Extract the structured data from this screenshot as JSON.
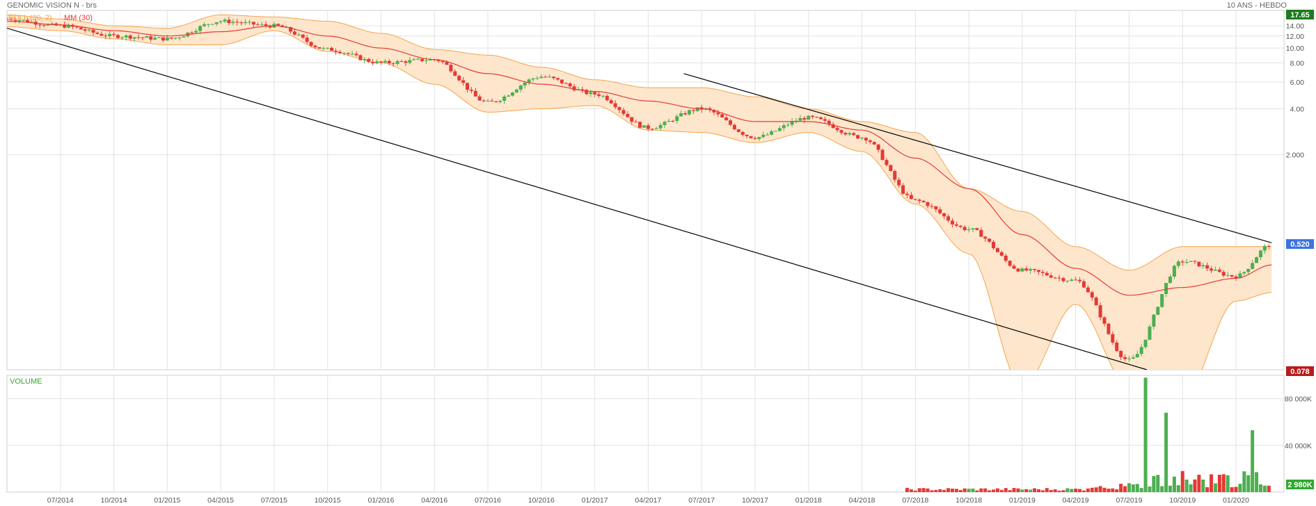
{
  "header": {
    "title": "GENOMIC VISION N - brs",
    "period": "10 ANS - HEBDO"
  },
  "legend": {
    "boll": "BOLL (20, 2)",
    "ma": "MM (30)",
    "volume": "VOLUME"
  },
  "price_axis": {
    "ticks": [
      "14.00",
      "12.00",
      "10.00",
      "8.00",
      "6.00",
      "4.00",
      "2.000"
    ],
    "badge_high": "17.65",
    "badge_last": "0.520",
    "badge_low": "0.078"
  },
  "volume_axis": {
    "ticks": [
      "80 000K",
      "40 000K"
    ],
    "badge_last": "2 980K"
  },
  "x_axis": {
    "labels": [
      "07/2014",
      "10/2014",
      "01/2015",
      "04/2015",
      "07/2015",
      "10/2015",
      "01/2016",
      "04/2016",
      "07/2016",
      "10/2016",
      "01/2017",
      "04/2017",
      "07/2017",
      "10/2017",
      "01/2018",
      "04/2018",
      "07/2018",
      "10/2018",
      "01/2019",
      "04/2019",
      "07/2019",
      "10/2019",
      "01/2020"
    ]
  },
  "colors": {
    "up": "#4caf50",
    "down": "#e53935",
    "ma": "#e53935",
    "band_fill": "#fde6cc",
    "band_line": "#f5a44a",
    "trend": "#000000",
    "grid": "#e2e2e2",
    "badge_high": "#1e7a1e",
    "badge_last": "#3b73e0",
    "badge_low": "#b71c1c",
    "badge_vol": "#2fa82f",
    "legend_boll": "#f5a44a",
    "legend_ma": "#e53935",
    "legend_volume": "#2fa82f"
  },
  "chart_data": {
    "type": "candlestick",
    "price_scale": "log",
    "ylim": [
      0.078,
      17.65
    ],
    "volume_ylim": [
      0,
      100000
    ],
    "volume_unit": "K",
    "checkpoints": [
      {
        "x": "2014-04",
        "price": 15.5,
        "ma": 15.0,
        "upper": 16.5,
        "lower": 13.8
      },
      {
        "x": "2014-07",
        "price": 14.0,
        "ma": 14.2,
        "upper": 15.5,
        "lower": 13.0
      },
      {
        "x": "2014-10",
        "price": 12.0,
        "ma": 13.0,
        "upper": 14.0,
        "lower": 11.5
      },
      {
        "x": "2015-01",
        "price": 11.5,
        "ma": 12.0,
        "upper": 13.5,
        "lower": 10.5
      },
      {
        "x": "2015-04",
        "price": 15.0,
        "ma": 12.8,
        "upper": 16.5,
        "lower": 10.5
      },
      {
        "x": "2015-07",
        "price": 14.0,
        "ma": 14.0,
        "upper": 16.0,
        "lower": 13.0
      },
      {
        "x": "2015-10",
        "price": 9.8,
        "ma": 12.0,
        "upper": 15.0,
        "lower": 9.5
      },
      {
        "x": "2016-01",
        "price": 8.0,
        "ma": 10.0,
        "upper": 12.5,
        "lower": 8.0
      },
      {
        "x": "2016-04",
        "price": 8.4,
        "ma": 8.4,
        "upper": 9.8,
        "lower": 5.8
      },
      {
        "x": "2016-07",
        "price": 4.4,
        "ma": 6.8,
        "upper": 9.0,
        "lower": 3.8
      },
      {
        "x": "2016-10",
        "price": 6.5,
        "ma": 5.8,
        "upper": 7.5,
        "lower": 4.0
      },
      {
        "x": "2017-01",
        "price": 5.0,
        "ma": 5.2,
        "upper": 6.2,
        "lower": 4.2
      },
      {
        "x": "2017-04",
        "price": 3.0,
        "ma": 4.5,
        "upper": 5.5,
        "lower": 2.9
      },
      {
        "x": "2017-07",
        "price": 4.0,
        "ma": 4.0,
        "upper": 5.5,
        "lower": 2.8
      },
      {
        "x": "2017-10",
        "price": 2.6,
        "ma": 3.3,
        "upper": 4.8,
        "lower": 2.4
      },
      {
        "x": "2018-01",
        "price": 3.5,
        "ma": 3.3,
        "upper": 4.0,
        "lower": 2.8
      },
      {
        "x": "2018-04",
        "price": 2.6,
        "ma": 2.9,
        "upper": 3.3,
        "lower": 2.1
      },
      {
        "x": "2018-07",
        "price": 1.0,
        "ma": 1.9,
        "upper": 2.8,
        "lower": 0.95
      },
      {
        "x": "2018-10",
        "price": 0.65,
        "ma": 1.2,
        "upper": 1.2,
        "lower": 0.45
      },
      {
        "x": "2019-01",
        "price": 0.35,
        "ma": 0.6,
        "upper": 0.85,
        "lower": 0.06
      },
      {
        "x": "2019-04",
        "price": 0.3,
        "ma": 0.36,
        "upper": 0.5,
        "lower": 0.21
      },
      {
        "x": "2019-07",
        "price": 0.09,
        "ma": 0.24,
        "upper": 0.35,
        "lower": 0.06
      },
      {
        "x": "2019-10",
        "price": 0.4,
        "ma": 0.27,
        "upper": 0.5,
        "lower": 0.05
      },
      {
        "x": "2020-01",
        "price": 0.32,
        "ma": 0.31,
        "upper": 0.5,
        "lower": 0.22
      },
      {
        "x": "2020-03",
        "price": 0.52,
        "ma": 0.38,
        "upper": 0.5,
        "lower": 0.25
      }
    ],
    "volume_spikes": [
      {
        "x": "2019-08",
        "value": 98000
      },
      {
        "x": "2019-09",
        "value": 68000
      },
      {
        "x": "2019-10",
        "value": 18000
      },
      {
        "x": "2020-02",
        "value": 53000
      },
      {
        "x": "2020-03",
        "value": 36000
      }
    ],
    "trendlines": [
      {
        "from": {
          "x": "2014-04",
          "price": 13.5
        },
        "to": {
          "x": "2019-08",
          "price": 0.078
        }
      },
      {
        "from": {
          "x": "2017-06",
          "price": 6.8
        },
        "to": {
          "x": "2020-03",
          "price": 0.53
        }
      }
    ]
  }
}
